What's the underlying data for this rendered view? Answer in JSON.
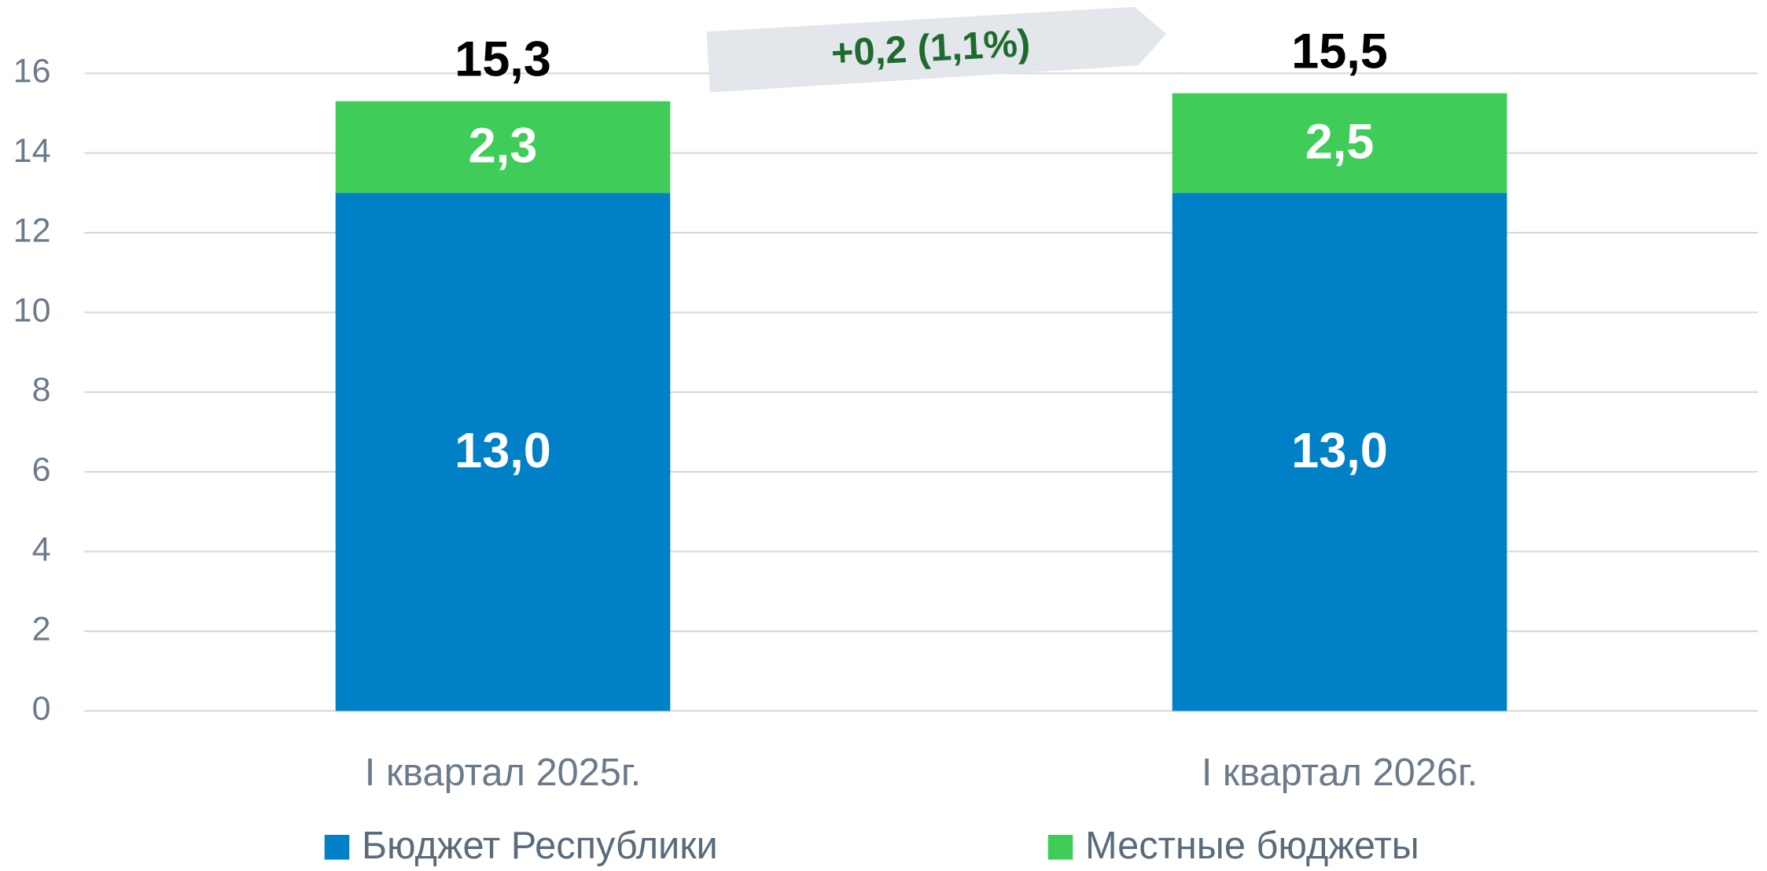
{
  "chart_data": {
    "type": "stacked_bar",
    "categories": [
      "I квартал 2025г.",
      "I квартал 2026г."
    ],
    "series": [
      {
        "name": "Бюджет Республики",
        "color": "#0080c6",
        "values": [
          13.0,
          13.0
        ],
        "value_labels": [
          "13,0",
          "13,0"
        ]
      },
      {
        "name": "Местные бюджеты",
        "color": "#3fcc59",
        "values": [
          2.3,
          2.5
        ],
        "value_labels": [
          "2,3",
          "2,5"
        ]
      }
    ],
    "totals": [
      15.3,
      15.5
    ],
    "total_labels": [
      "15,3",
      "15,5"
    ],
    "annotation": "+0,2 (1,1%)",
    "ylim": [
      0,
      16
    ],
    "yticks": [
      0,
      2,
      4,
      6,
      8,
      10,
      12,
      14,
      16
    ],
    "grid": true
  }
}
